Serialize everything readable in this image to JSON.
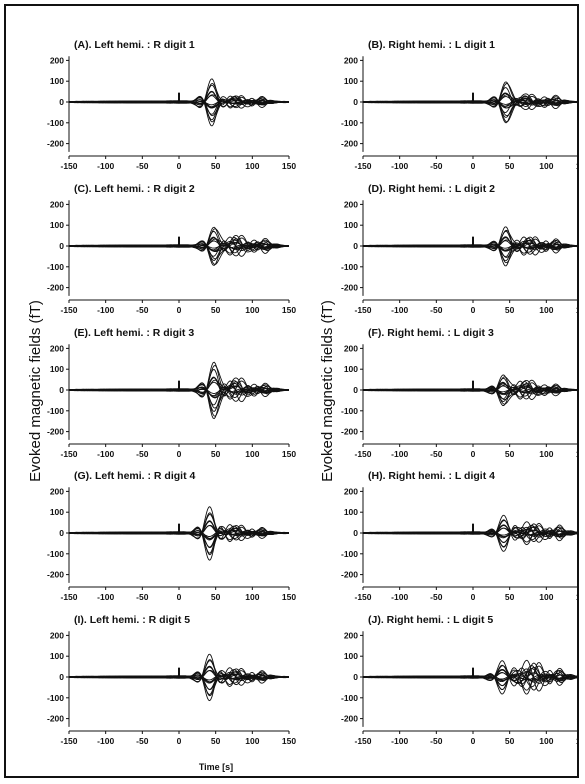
{
  "y_axis_label": "Evoked magnetic fields (fT)",
  "x_axis_label": "Time [s]",
  "chart_data": [
    {
      "type": "line",
      "title": "(A). Left hemi. : R digit 1",
      "xlim": [
        -150,
        150
      ],
      "ylim": [
        -250,
        250
      ],
      "x_ticks": [
        -150,
        -100,
        -50,
        0,
        50,
        100,
        150
      ],
      "y_ticks": [
        200,
        100,
        0,
        -100,
        -200
      ],
      "components": [
        {
          "latency": 45,
          "amplitude": 150,
          "width": 11
        },
        {
          "latency": 75,
          "amplitude": 50,
          "width": 16
        },
        {
          "latency": 110,
          "amplitude": 30,
          "width": 12
        }
      ]
    },
    {
      "type": "line",
      "title": "(B). Right hemi. : L digit 1",
      "xlim": [
        -150,
        150
      ],
      "ylim": [
        -250,
        250
      ],
      "x_ticks": [
        -150,
        -100,
        -50,
        0,
        50,
        100,
        150
      ],
      "y_ticks": [
        200,
        100,
        0,
        -100,
        -200
      ],
      "components": [
        {
          "latency": 45,
          "amplitude": 140,
          "width": 11
        },
        {
          "latency": 70,
          "amplitude": 60,
          "width": 16
        },
        {
          "latency": 110,
          "amplitude": 35,
          "width": 12
        }
      ]
    },
    {
      "type": "line",
      "title": "(C). Left hemi. : R digit 2",
      "xlim": [
        -150,
        150
      ],
      "ylim": [
        -250,
        250
      ],
      "x_ticks": [
        -150,
        -100,
        -50,
        0,
        50,
        100,
        150
      ],
      "y_ticks": [
        200,
        100,
        0,
        -100,
        -200
      ],
      "components": [
        {
          "latency": 48,
          "amplitude": 135,
          "width": 11
        },
        {
          "latency": 75,
          "amplitude": 80,
          "width": 16
        },
        {
          "latency": 115,
          "amplitude": 40,
          "width": 12
        }
      ]
    },
    {
      "type": "line",
      "title": "(D). Right hemi. : L digit 2",
      "xlim": [
        -150,
        150
      ],
      "ylim": [
        -250,
        250
      ],
      "x_ticks": [
        -150,
        -100,
        -50,
        0,
        50,
        100,
        150
      ],
      "y_ticks": [
        200,
        100,
        0,
        -100,
        -200
      ],
      "components": [
        {
          "latency": 45,
          "amplitude": 130,
          "width": 11
        },
        {
          "latency": 75,
          "amplitude": 70,
          "width": 16
        },
        {
          "latency": 110,
          "amplitude": 40,
          "width": 12
        }
      ]
    },
    {
      "type": "line",
      "title": "(E). Left hemi. : R digit 3",
      "xlim": [
        -150,
        150
      ],
      "ylim": [
        -250,
        250
      ],
      "x_ticks": [
        -150,
        -100,
        -50,
        0,
        50,
        100,
        150
      ],
      "y_ticks": [
        200,
        100,
        0,
        -100,
        -200
      ],
      "components": [
        {
          "latency": 48,
          "amplitude": 190,
          "width": 11
        },
        {
          "latency": 75,
          "amplitude": 90,
          "width": 16
        },
        {
          "latency": 115,
          "amplitude": 35,
          "width": 12
        }
      ]
    },
    {
      "type": "line",
      "title": "(F). Right hemi. : L digit 3",
      "xlim": [
        -150,
        150
      ],
      "ylim": [
        -250,
        250
      ],
      "x_ticks": [
        -150,
        -100,
        -50,
        0,
        50,
        100,
        150
      ],
      "y_ticks": [
        200,
        100,
        0,
        -100,
        -200
      ],
      "components": [
        {
          "latency": 42,
          "amplitude": 110,
          "width": 11
        },
        {
          "latency": 70,
          "amplitude": 75,
          "width": 16
        },
        {
          "latency": 110,
          "amplitude": 30,
          "width": 12
        }
      ]
    },
    {
      "type": "line",
      "title": "(G). Left hemi. : R digit 4",
      "xlim": [
        -150,
        150
      ],
      "ylim": [
        -250,
        250
      ],
      "x_ticks": [
        -150,
        -100,
        -50,
        0,
        50,
        100,
        150
      ],
      "y_ticks": [
        200,
        100,
        0,
        -100,
        -200
      ],
      "components": [
        {
          "latency": 42,
          "amplitude": 165,
          "width": 11
        },
        {
          "latency": 75,
          "amplitude": 60,
          "width": 16
        },
        {
          "latency": 110,
          "amplitude": 30,
          "width": 12
        }
      ]
    },
    {
      "type": "line",
      "title": "(H). Right hemi. : L digit 4",
      "xlim": [
        -150,
        150
      ],
      "ylim": [
        -250,
        250
      ],
      "x_ticks": [
        -150,
        -100,
        -50,
        0,
        50,
        100,
        150
      ],
      "y_ticks": [
        200,
        100,
        0,
        -100,
        -200
      ],
      "components": [
        {
          "latency": 42,
          "amplitude": 110,
          "width": 11
        },
        {
          "latency": 80,
          "amplitude": 70,
          "width": 16
        },
        {
          "latency": 115,
          "amplitude": 45,
          "width": 12
        }
      ]
    },
    {
      "type": "line",
      "title": "(I). Left hemi. : R digit 5",
      "xlim": [
        -150,
        150
      ],
      "ylim": [
        -250,
        250
      ],
      "x_ticks": [
        -150,
        -100,
        -50,
        0,
        50,
        100,
        150
      ],
      "y_ticks": [
        200,
        100,
        0,
        -100,
        -200
      ],
      "components": [
        {
          "latency": 42,
          "amplitude": 145,
          "width": 11
        },
        {
          "latency": 75,
          "amplitude": 65,
          "width": 16
        },
        {
          "latency": 110,
          "amplitude": 35,
          "width": 12
        }
      ]
    },
    {
      "type": "line",
      "title": "(J). Right hemi. : L digit 5",
      "xlim": [
        -150,
        150
      ],
      "ylim": [
        -250,
        250
      ],
      "x_ticks": [
        -150,
        -100,
        -50,
        0,
        50,
        100,
        150
      ],
      "y_ticks": [
        200,
        100,
        0,
        -100,
        -200
      ],
      "components": [
        {
          "latency": 40,
          "amplitude": 100,
          "width": 11
        },
        {
          "latency": 80,
          "amplitude": 105,
          "width": 16
        },
        {
          "latency": 115,
          "amplitude": 50,
          "width": 12
        }
      ]
    }
  ]
}
